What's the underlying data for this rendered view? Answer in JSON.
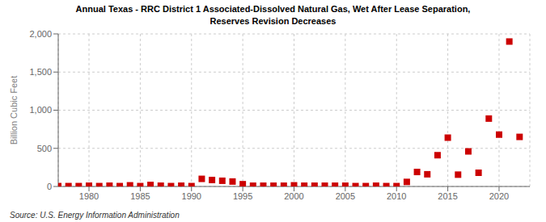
{
  "chart_data": {
    "type": "scatter",
    "title": "Annual Texas - RRC District 1 Associated-Dissolved Natural Gas, Wet After Lease Separation,\nReserves Revision Decreases",
    "ylabel": "Billion Cubic Feet",
    "source": "Source: U.S. Energy Information Administration",
    "x": [
      1977,
      1978,
      1979,
      1980,
      1981,
      1982,
      1983,
      1984,
      1985,
      1986,
      1987,
      1988,
      1989,
      1990,
      1991,
      1992,
      1993,
      1994,
      1995,
      1996,
      1997,
      1998,
      1999,
      2000,
      2001,
      2002,
      2003,
      2004,
      2005,
      2006,
      2007,
      2008,
      2009,
      2010,
      2011,
      2012,
      2013,
      2014,
      2015,
      2016,
      2017,
      2018,
      2019,
      2020,
      2021,
      2022
    ],
    "values": [
      5,
      5,
      5,
      10,
      5,
      10,
      5,
      15,
      5,
      20,
      10,
      5,
      10,
      5,
      100,
      85,
      75,
      65,
      30,
      10,
      10,
      10,
      10,
      15,
      10,
      10,
      10,
      10,
      10,
      5,
      5,
      10,
      5,
      5,
      60,
      190,
      160,
      410,
      640,
      155,
      460,
      180,
      890,
      680,
      1900,
      650
    ],
    "color": "#cc0000",
    "marker": "square",
    "xlim": [
      1977,
      2023
    ],
    "ylim": [
      0,
      2000
    ],
    "xticks": [
      1980,
      1985,
      1990,
      1995,
      2000,
      2005,
      2010,
      2015,
      2020
    ],
    "yticks": [
      0,
      500,
      {
        "value": 1000,
        "label": "1,000"
      },
      {
        "value": 1500,
        "label": "1,500"
      },
      {
        "value": 2000,
        "label": "2,000"
      }
    ],
    "grid": true
  }
}
